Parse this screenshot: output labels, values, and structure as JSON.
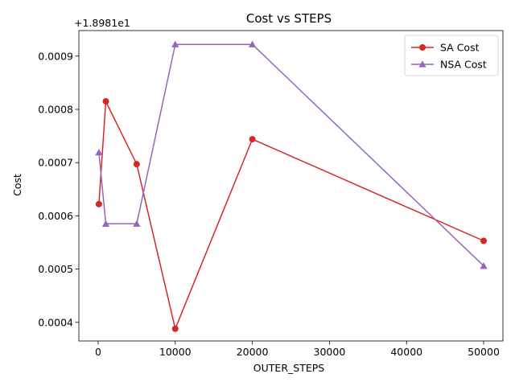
{
  "chart_data": {
    "type": "line",
    "title": "Cost vs STEPS",
    "xlabel": "OUTER_STEPS",
    "ylabel": "Cost",
    "offset_text": "+1.8981e1",
    "xlim": [
      -2500,
      52500
    ],
    "ylim": [
      0.000365,
      0.000948
    ],
    "xticks": [
      0,
      10000,
      20000,
      30000,
      40000,
      50000
    ],
    "xtick_labels": [
      "0",
      "10000",
      "20000",
      "30000",
      "40000",
      "50000"
    ],
    "yticks": [
      0.0004,
      0.0005,
      0.0006,
      0.0007,
      0.0008,
      0.0009
    ],
    "ytick_labels": [
      "0.0004",
      "0.0005",
      "0.0006",
      "0.0007",
      "0.0008",
      "0.0009"
    ],
    "grid": false,
    "legend_position": "top-right",
    "series": [
      {
        "name": "SA Cost",
        "color": "#d62728",
        "marker": "circle",
        "x": [
          100,
          1000,
          5000,
          10000,
          20000,
          50000
        ],
        "y": [
          0.000622,
          0.000815,
          0.000697,
          0.000388,
          0.000744,
          0.000553
        ]
      },
      {
        "name": "NSA Cost",
        "color": "#9467bd",
        "marker": "triangle",
        "x": [
          100,
          1000,
          5000,
          10000,
          20000,
          50000
        ],
        "y": [
          0.000719,
          0.000585,
          0.000585,
          0.000922,
          0.000922,
          0.000506
        ]
      }
    ]
  }
}
